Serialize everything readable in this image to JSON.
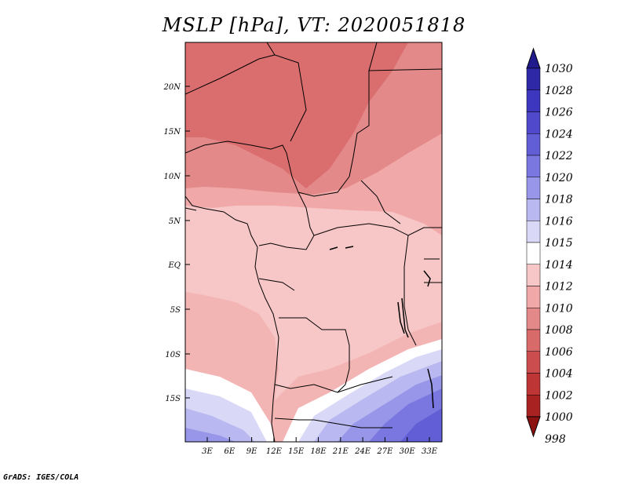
{
  "title": "MSLP [hPa], VT: 2020051818",
  "footer": "GrADS: IGES/COLA",
  "axes": {
    "lat_labels": [
      "20N",
      "15N",
      "10N",
      "5N",
      "EQ",
      "5S",
      "10S",
      "15S"
    ],
    "lon_labels": [
      "3E",
      "6E",
      "9E",
      "12E",
      "15E",
      "18E",
      "21E",
      "24E",
      "27E",
      "30E",
      "33E"
    ]
  },
  "colorbar": {
    "levels": [
      "1030",
      "1028",
      "1026",
      "1024",
      "1022",
      "1020",
      "1018",
      "1016",
      "1015",
      "1014",
      "1012",
      "1010",
      "1008",
      "1006",
      "1004",
      "1002",
      "1000",
      "998"
    ],
    "colors": [
      "#211a8c",
      "#2e27a6",
      "#3d37bf",
      "#5049cc",
      "#625ed6",
      "#7a78e0",
      "#9896e8",
      "#b9b8f0",
      "#d9d9f7",
      "#ffffff",
      "#f7c6c6",
      "#f0a8a8",
      "#e38989",
      "#d86a6a",
      "#cc4d4d",
      "#bd3535",
      "#a82222",
      "#8c1212"
    ]
  }
}
